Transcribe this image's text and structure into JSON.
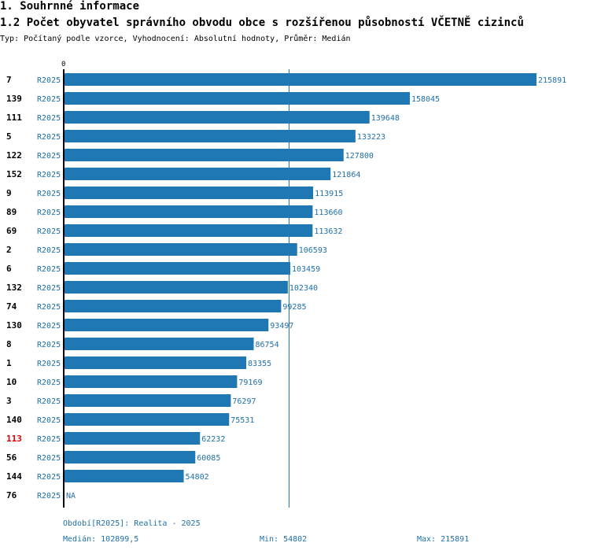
{
  "header": {
    "section_title": "1. Souhrnné informace",
    "chart_title": "1.2 Počet obyvatel správního obvodu obce s rozšířenou působností VČETNĚ cizinců",
    "subtitle": "Typ: Počítaný podle vzorce, Vyhodnocení: Absolutní hodnoty, Průměr: Medián"
  },
  "chart_data": {
    "type": "bar",
    "orientation": "horizontal",
    "axis_zero_label": "0",
    "categories": [
      "7",
      "139",
      "111",
      "5",
      "122",
      "152",
      "9",
      "89",
      "69",
      "2",
      "6",
      "132",
      "74",
      "130",
      "8",
      "1",
      "10",
      "3",
      "140",
      "113",
      "56",
      "144",
      "76"
    ],
    "series": [
      {
        "name": "R2025",
        "values": [
          215891,
          158045,
          139648,
          133223,
          127800,
          121864,
          113915,
          113660,
          113632,
          106593,
          103459,
          102340,
          99285,
          93497,
          86754,
          83355,
          79169,
          76297,
          75531,
          62232,
          60085,
          54802,
          null
        ]
      }
    ],
    "value_labels": [
      "215891",
      "158045",
      "139648",
      "133223",
      "127800",
      "121864",
      "113915",
      "113660",
      "113632",
      "106593",
      "103459",
      "102340",
      "99285",
      "93497",
      "86754",
      "83355",
      "79169",
      "76297",
      "75531",
      "62232",
      "60085",
      "54802",
      "NA"
    ],
    "highlighted_category": "113",
    "median": 102899.5,
    "xlim": [
      0,
      215891
    ],
    "colors": {
      "bar": "#1f77b4",
      "label": "#1f6fa8",
      "highlight": "#e00000",
      "median_line": "#1f6fa8",
      "axis": "#000000"
    }
  },
  "footer": {
    "period": "Období[R2025]: Realita - 2025",
    "median": "Medián: 102899,5",
    "min": "Min: 54802",
    "max": "Max: 215891"
  }
}
